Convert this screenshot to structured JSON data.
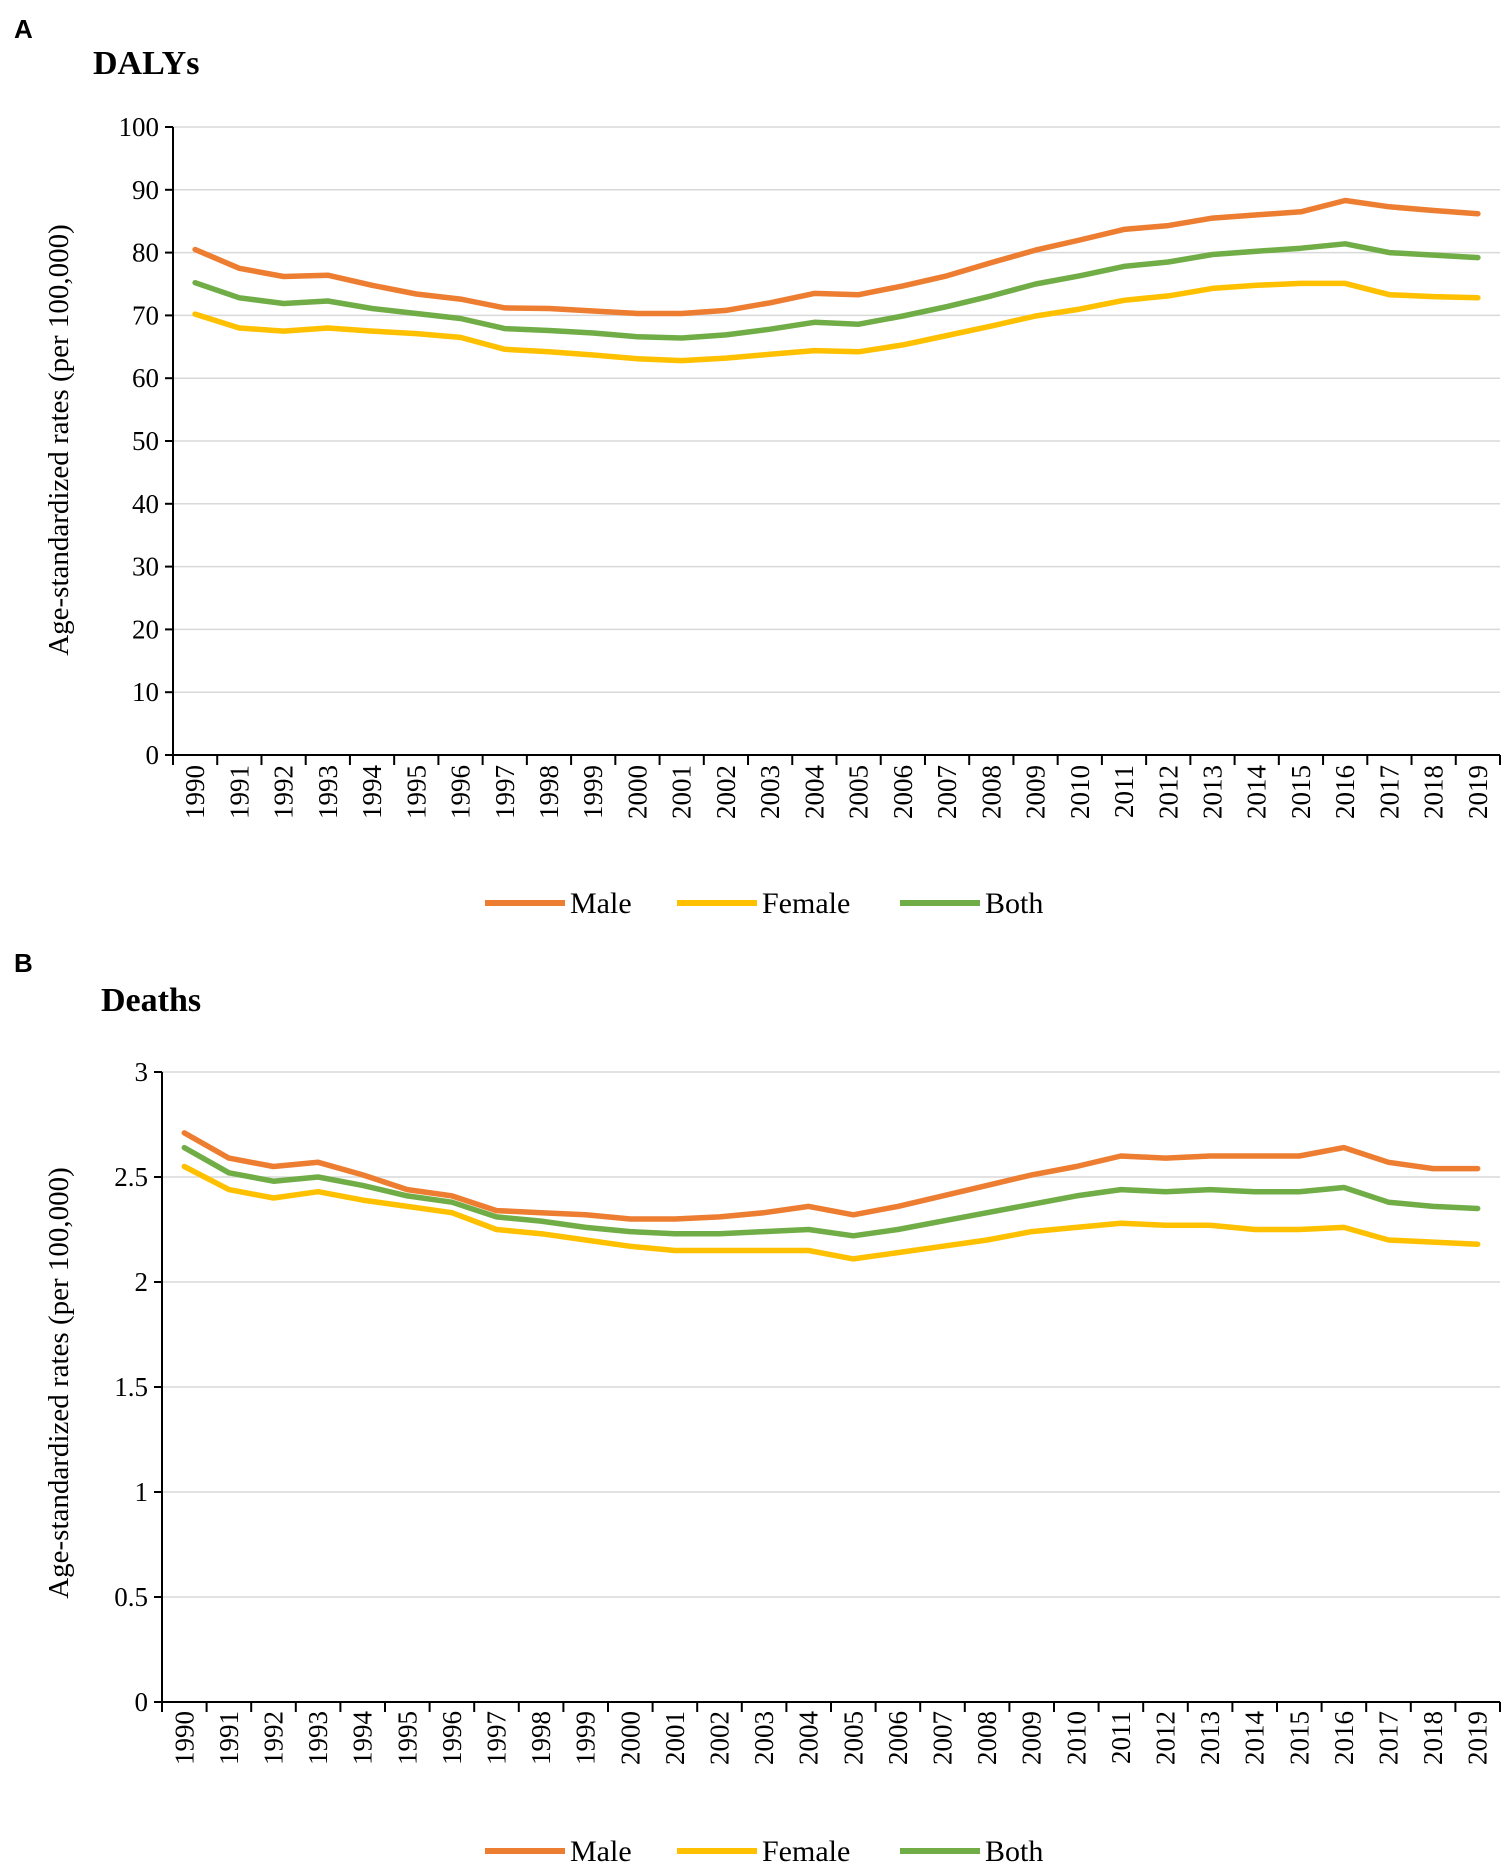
{
  "chart_data": [
    {
      "panel": "A",
      "type": "line",
      "title": "DALYs",
      "ylabel": "Age-standardized rates (per 100,000)",
      "xlabel": "",
      "ylim": [
        0,
        100
      ],
      "yticks": [
        "0",
        "10",
        "20",
        "30",
        "40",
        "50",
        "60",
        "70",
        "80",
        "90",
        "100"
      ],
      "ytick_values": [
        0,
        10,
        20,
        30,
        40,
        50,
        60,
        70,
        80,
        90,
        100
      ],
      "categories": [
        "1990",
        "1991",
        "1992",
        "1993",
        "1994",
        "1995",
        "1996",
        "1997",
        "1998",
        "1999",
        "2000",
        "2001",
        "2002",
        "2003",
        "2004",
        "2005",
        "2006",
        "2007",
        "2008",
        "2009",
        "2010",
        "2011",
        "2012",
        "2013",
        "2014",
        "2015",
        "2016",
        "2017",
        "2018",
        "2019"
      ],
      "series": [
        {
          "name": "Male",
          "color": "#ED7D31",
          "values": [
            80.5,
            77.5,
            76.2,
            76.4,
            74.8,
            73.4,
            72.6,
            71.2,
            71.1,
            70.7,
            70.3,
            70.3,
            70.8,
            72.0,
            73.5,
            73.3,
            74.7,
            76.3,
            78.4,
            80.4,
            82.0,
            83.7,
            84.3,
            85.5,
            86.0,
            86.5,
            88.3,
            87.3,
            86.7,
            86.2
          ]
        },
        {
          "name": "Female",
          "color": "#FFC000",
          "values": [
            70.2,
            68.0,
            67.5,
            68.0,
            67.5,
            67.1,
            66.5,
            64.6,
            64.2,
            63.7,
            63.1,
            62.8,
            63.2,
            63.8,
            64.4,
            64.2,
            65.3,
            66.8,
            68.3,
            69.9,
            71.0,
            72.4,
            73.1,
            74.3,
            74.8,
            75.1,
            75.1,
            73.3,
            73.0,
            72.8
          ]
        },
        {
          "name": "Both",
          "color": "#70AD47",
          "values": [
            75.2,
            72.8,
            71.9,
            72.3,
            71.1,
            70.3,
            69.5,
            67.9,
            67.6,
            67.2,
            66.6,
            66.4,
            66.9,
            67.8,
            68.9,
            68.6,
            69.9,
            71.4,
            73.1,
            75.0,
            76.3,
            77.8,
            78.5,
            79.7,
            80.2,
            80.7,
            81.4,
            80.0,
            79.6,
            79.2
          ]
        }
      ],
      "legend": [
        "Male",
        "Female",
        "Both"
      ]
    },
    {
      "panel": "B",
      "type": "line",
      "title": "Deaths",
      "ylabel": "Age-standardized rates (per 100,000)",
      "xlabel": "",
      "ylim": [
        0,
        3
      ],
      "yticks": [
        "0",
        "0.5",
        "1",
        "1.5",
        "2",
        "2.5",
        "3"
      ],
      "ytick_values": [
        0,
        0.5,
        1,
        1.5,
        2,
        2.5,
        3
      ],
      "categories": [
        "1990",
        "1991",
        "1992",
        "1993",
        "1994",
        "1995",
        "1996",
        "1997",
        "1998",
        "1999",
        "2000",
        "2001",
        "2002",
        "2003",
        "2004",
        "2005",
        "2006",
        "2007",
        "2008",
        "2009",
        "2010",
        "2011",
        "2012",
        "2013",
        "2014",
        "2015",
        "2016",
        "2017",
        "2018",
        "2019"
      ],
      "series": [
        {
          "name": "Male",
          "color": "#ED7D31",
          "values": [
            2.71,
            2.59,
            2.55,
            2.57,
            2.51,
            2.44,
            2.41,
            2.34,
            2.33,
            2.32,
            2.3,
            2.3,
            2.31,
            2.33,
            2.36,
            2.32,
            2.36,
            2.41,
            2.46,
            2.51,
            2.55,
            2.6,
            2.59,
            2.6,
            2.6,
            2.6,
            2.64,
            2.57,
            2.54,
            2.54
          ]
        },
        {
          "name": "Female",
          "color": "#FFC000",
          "values": [
            2.55,
            2.44,
            2.4,
            2.43,
            2.39,
            2.36,
            2.33,
            2.25,
            2.23,
            2.2,
            2.17,
            2.15,
            2.15,
            2.15,
            2.15,
            2.11,
            2.14,
            2.17,
            2.2,
            2.24,
            2.26,
            2.28,
            2.27,
            2.27,
            2.25,
            2.25,
            2.26,
            2.2,
            2.19,
            2.18
          ]
        },
        {
          "name": "Both",
          "color": "#70AD47",
          "values": [
            2.64,
            2.52,
            2.48,
            2.5,
            2.46,
            2.41,
            2.38,
            2.31,
            2.29,
            2.26,
            2.24,
            2.23,
            2.23,
            2.24,
            2.25,
            2.22,
            2.25,
            2.29,
            2.33,
            2.37,
            2.41,
            2.44,
            2.43,
            2.44,
            2.43,
            2.43,
            2.45,
            2.38,
            2.36,
            2.35
          ]
        }
      ],
      "legend": [
        "Male",
        "Female",
        "Both"
      ]
    }
  ]
}
